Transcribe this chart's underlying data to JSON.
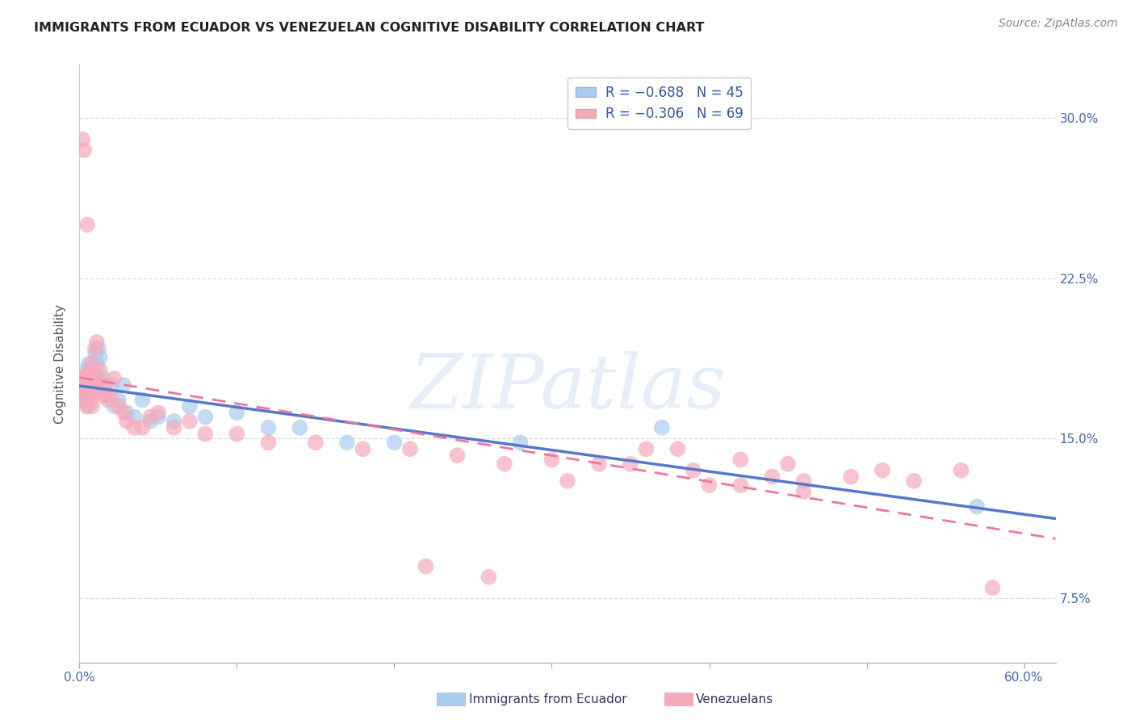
{
  "title": "IMMIGRANTS FROM ECUADOR VS VENEZUELAN COGNITIVE DISABILITY CORRELATION CHART",
  "source": "Source: ZipAtlas.com",
  "ylabel": "Cognitive Disability",
  "series1_color": "#aaccf0",
  "series2_color": "#f5aabb",
  "line1_color": "#5577cc",
  "line2_color": "#ee7799",
  "watermark": "ZIPatlas",
  "ecuador_x": [
    0.001,
    0.002,
    0.002,
    0.003,
    0.003,
    0.004,
    0.004,
    0.005,
    0.005,
    0.006,
    0.006,
    0.007,
    0.007,
    0.007,
    0.008,
    0.008,
    0.009,
    0.01,
    0.01,
    0.011,
    0.012,
    0.013,
    0.015,
    0.016,
    0.018,
    0.02,
    0.022,
    0.025,
    0.028,
    0.03,
    0.035,
    0.04,
    0.045,
    0.05,
    0.06,
    0.07,
    0.08,
    0.1,
    0.12,
    0.14,
    0.17,
    0.2,
    0.28,
    0.37,
    0.57
  ],
  "ecuador_y": [
    0.172,
    0.175,
    0.17,
    0.178,
    0.168,
    0.182,
    0.175,
    0.17,
    0.165,
    0.178,
    0.185,
    0.175,
    0.182,
    0.175,
    0.18,
    0.172,
    0.18,
    0.19,
    0.172,
    0.185,
    0.192,
    0.188,
    0.178,
    0.172,
    0.17,
    0.175,
    0.165,
    0.168,
    0.175,
    0.162,
    0.16,
    0.168,
    0.158,
    0.16,
    0.158,
    0.165,
    0.16,
    0.162,
    0.155,
    0.155,
    0.148,
    0.148,
    0.148,
    0.155,
    0.118
  ],
  "venezuela_x": [
    0.001,
    0.001,
    0.002,
    0.002,
    0.003,
    0.003,
    0.004,
    0.004,
    0.005,
    0.005,
    0.005,
    0.006,
    0.006,
    0.007,
    0.007,
    0.007,
    0.008,
    0.008,
    0.009,
    0.009,
    0.01,
    0.01,
    0.011,
    0.012,
    0.013,
    0.014,
    0.015,
    0.016,
    0.018,
    0.02,
    0.022,
    0.025,
    0.028,
    0.03,
    0.035,
    0.04,
    0.045,
    0.05,
    0.06,
    0.07,
    0.08,
    0.1,
    0.12,
    0.15,
    0.18,
    0.21,
    0.24,
    0.27,
    0.3,
    0.33,
    0.36,
    0.39,
    0.42,
    0.45,
    0.46,
    0.49,
    0.51,
    0.53,
    0.56,
    0.4,
    0.44,
    0.22,
    0.26,
    0.31,
    0.35,
    0.38,
    0.58,
    0.42,
    0.46
  ],
  "venezuela_y": [
    0.172,
    0.178,
    0.168,
    0.29,
    0.285,
    0.17,
    0.175,
    0.172,
    0.18,
    0.165,
    0.25,
    0.175,
    0.18,
    0.182,
    0.172,
    0.168,
    0.165,
    0.185,
    0.18,
    0.175,
    0.175,
    0.192,
    0.195,
    0.178,
    0.182,
    0.172,
    0.17,
    0.175,
    0.168,
    0.17,
    0.178,
    0.165,
    0.162,
    0.158,
    0.155,
    0.155,
    0.16,
    0.162,
    0.155,
    0.158,
    0.152,
    0.152,
    0.148,
    0.148,
    0.145,
    0.145,
    0.142,
    0.138,
    0.14,
    0.138,
    0.145,
    0.135,
    0.14,
    0.138,
    0.13,
    0.132,
    0.135,
    0.13,
    0.135,
    0.128,
    0.132,
    0.09,
    0.085,
    0.13,
    0.138,
    0.145,
    0.08,
    0.128,
    0.125
  ],
  "xlim": [
    0.0,
    0.62
  ],
  "ylim": [
    0.045,
    0.325
  ],
  "ytick_vals": [
    0.075,
    0.15,
    0.225,
    0.3
  ],
  "ytick_labels": [
    "7.5%",
    "15.0%",
    "22.5%",
    "30.0%"
  ],
  "xtick_vals": [
    0.0,
    0.6
  ],
  "xtick_labels": [
    "0.0%",
    "60.0%"
  ],
  "background_color": "#ffffff",
  "grid_color": "#dddddd"
}
